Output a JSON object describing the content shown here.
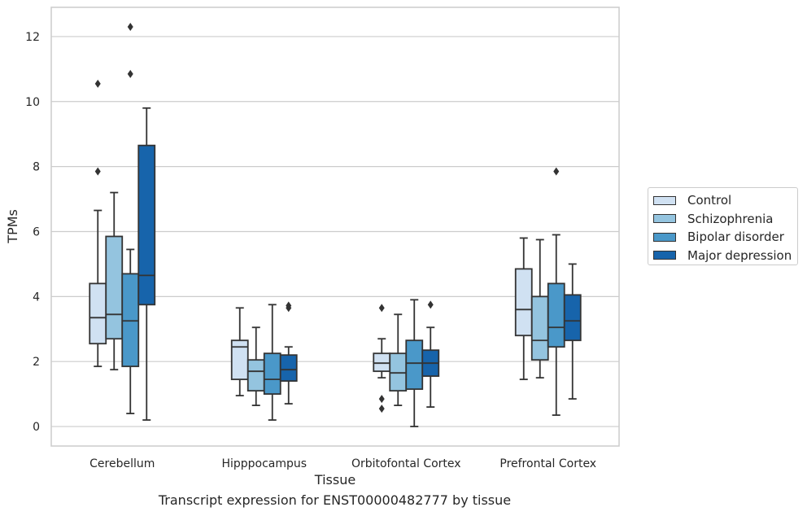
{
  "caption": "Transcript expression for ENST00000482777 by tissue",
  "chart_data": {
    "type": "box",
    "title": "",
    "xlabel": "Tissue",
    "ylabel": "TPMs",
    "ylim": [
      -0.6,
      12.9
    ],
    "yticks": [
      0,
      2,
      4,
      6,
      8,
      10,
      12
    ],
    "grid": "horizontal",
    "legend_position": "right",
    "categories": [
      "Cerebellum",
      "Hipppocampus",
      "Orbitofontal Cortex",
      "Prefrontal Cortex"
    ],
    "series": [
      {
        "name": "Control",
        "color": "#d0e1f2",
        "boxes": [
          {
            "whisker_low": 1.85,
            "q1": 2.55,
            "median": 3.35,
            "q3": 4.4,
            "whisker_high": 6.65,
            "outliers": [
              7.85,
              10.55
            ]
          },
          {
            "whisker_low": 0.95,
            "q1": 1.45,
            "median": 2.45,
            "q3": 2.65,
            "whisker_high": 3.65,
            "outliers": []
          },
          {
            "whisker_low": 1.5,
            "q1": 1.7,
            "median": 1.95,
            "q3": 2.25,
            "whisker_high": 2.7,
            "outliers": [
              0.55,
              0.85,
              3.65
            ]
          },
          {
            "whisker_low": 1.45,
            "q1": 2.8,
            "median": 3.6,
            "q3": 4.85,
            "whisker_high": 5.8,
            "outliers": []
          }
        ]
      },
      {
        "name": "Schizophrenia",
        "color": "#94c4df",
        "boxes": [
          {
            "whisker_low": 1.75,
            "q1": 2.7,
            "median": 3.45,
            "q3": 5.85,
            "whisker_high": 7.2,
            "outliers": []
          },
          {
            "whisker_low": 0.65,
            "q1": 1.1,
            "median": 1.7,
            "q3": 2.05,
            "whisker_high": 3.05,
            "outliers": []
          },
          {
            "whisker_low": 0.65,
            "q1": 1.1,
            "median": 1.65,
            "q3": 2.25,
            "whisker_high": 3.45,
            "outliers": []
          },
          {
            "whisker_low": 1.5,
            "q1": 2.05,
            "median": 2.65,
            "q3": 4.0,
            "whisker_high": 5.75,
            "outliers": []
          }
        ]
      },
      {
        "name": "Bipolar disorder",
        "color": "#4a98c9",
        "boxes": [
          {
            "whisker_low": 0.4,
            "q1": 1.85,
            "median": 3.25,
            "q3": 4.7,
            "whisker_high": 5.45,
            "outliers": [
              10.85,
              12.3
            ]
          },
          {
            "whisker_low": 0.2,
            "q1": 1.0,
            "median": 1.45,
            "q3": 2.25,
            "whisker_high": 3.75,
            "outliers": []
          },
          {
            "whisker_low": 0.0,
            "q1": 1.15,
            "median": 1.95,
            "q3": 2.65,
            "whisker_high": 3.9,
            "outliers": []
          },
          {
            "whisker_low": 0.35,
            "q1": 2.45,
            "median": 3.05,
            "q3": 4.4,
            "whisker_high": 5.9,
            "outliers": [
              7.85
            ]
          }
        ]
      },
      {
        "name": "Major depression",
        "color": "#1764ab",
        "boxes": [
          {
            "whisker_low": 0.2,
            "q1": 3.75,
            "median": 4.65,
            "q3": 8.65,
            "whisker_high": 9.8,
            "outliers": []
          },
          {
            "whisker_low": 0.7,
            "q1": 1.4,
            "median": 1.75,
            "q3": 2.2,
            "whisker_high": 2.45,
            "outliers": [
              3.65,
              3.72
            ]
          },
          {
            "whisker_low": 0.6,
            "q1": 1.55,
            "median": 1.95,
            "q3": 2.35,
            "whisker_high": 3.05,
            "outliers": [
              3.75
            ]
          },
          {
            "whisker_low": 0.85,
            "q1": 2.65,
            "median": 3.25,
            "q3": 4.05,
            "whisker_high": 5.0,
            "outliers": []
          }
        ]
      }
    ]
  }
}
